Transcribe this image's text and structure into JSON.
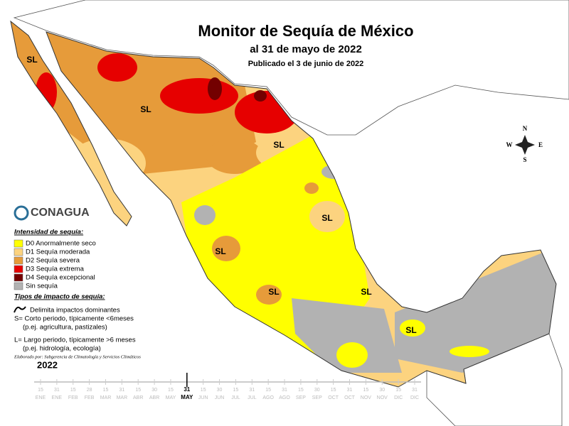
{
  "header": {
    "title": "Monitor de Sequía de México",
    "subtitle": "al 31 de mayo de 2022",
    "published": "Publicado el 3 de junio de 2022"
  },
  "compass": {
    "n": "N",
    "e": "E",
    "s": "S",
    "w": "W"
  },
  "logo": "CONAGUA",
  "map_labels": [
    "SL",
    "SL",
    "SL",
    "SL",
    "SL",
    "SL",
    "SL",
    "SL"
  ],
  "legend": {
    "title": "Intensidad de sequía:",
    "items": [
      {
        "label": "D0 Anormalmente seco",
        "color": "#ffff00"
      },
      {
        "label": "D1 Sequía moderada",
        "color": "#fcd37f"
      },
      {
        "label": "D2 Sequía severa",
        "color": "#e69b3a"
      },
      {
        "label": "D3 Sequía extrema",
        "color": "#e60000"
      },
      {
        "label": "D4 Sequía excepcional",
        "color": "#730000"
      },
      {
        "label": "Sin sequía",
        "color": "#b2b2b2"
      }
    ]
  },
  "impact": {
    "title": "Tipos de impacto de sequía:",
    "line": "Delimita impactos dominantes",
    "s": "S= Corto periodo, típicamente <6meses",
    "s_example": "(p.ej. agricultura, pastizales)",
    "l": "L= Largo periodo, típicamente >6 meses",
    "l_example": "(p.ej. hidrología, ecología)"
  },
  "credit": "Elaborado por: Subgerencia de Climatología y Servicios Climáticos",
  "timeline": {
    "year": "2022",
    "ticks": [
      {
        "day": "15",
        "month": "ENE"
      },
      {
        "day": "31",
        "month": "ENE"
      },
      {
        "day": "15",
        "month": "FEB"
      },
      {
        "day": "28",
        "month": "FEB"
      },
      {
        "day": "15",
        "month": "MAR"
      },
      {
        "day": "31",
        "month": "MAR"
      },
      {
        "day": "15",
        "month": "ABR"
      },
      {
        "day": "30",
        "month": "ABR"
      },
      {
        "day": "15",
        "month": "MAY"
      },
      {
        "day": "31",
        "month": "MAY",
        "current": true
      },
      {
        "day": "15",
        "month": "JUN"
      },
      {
        "day": "30",
        "month": "JUN"
      },
      {
        "day": "15",
        "month": "JUL"
      },
      {
        "day": "31",
        "month": "JUL"
      },
      {
        "day": "15",
        "month": "AGO"
      },
      {
        "day": "31",
        "month": "AGO"
      },
      {
        "day": "15",
        "month": "SEP"
      },
      {
        "day": "30",
        "month": "SEP"
      },
      {
        "day": "15",
        "month": "OCT"
      },
      {
        "day": "31",
        "month": "OCT"
      },
      {
        "day": "15",
        "month": "NOV"
      },
      {
        "day": "30",
        "month": "NOV"
      },
      {
        "day": "15",
        "month": "DIC"
      },
      {
        "day": "31",
        "month": "DIC"
      }
    ]
  }
}
